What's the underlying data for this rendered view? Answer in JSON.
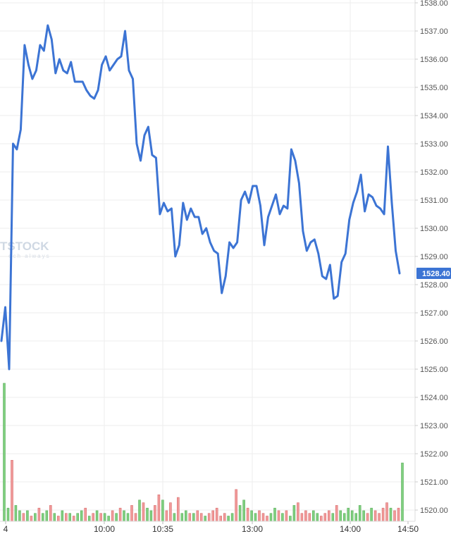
{
  "watermark": {
    "brand": "TSTOCK",
    "tagline": "ech  always"
  },
  "colors": {
    "price_line": "#3c74d4",
    "vol_up": "#7fcf7f",
    "vol_down": "#f19a9a",
    "grid": "#eeeeee",
    "last_badge": "#3c74d4"
  },
  "chart_data": {
    "type": "line",
    "title": "",
    "ylim": [
      1519.6,
      1538.1
    ],
    "y_ticks": [
      "1520.00",
      "1521.00",
      "1522.00",
      "1523.00",
      "1524.00",
      "1525.00",
      "1526.00",
      "1527.00",
      "1528.00",
      "1529.00",
      "1530.00",
      "1531.00",
      "1532.00",
      "1533.00",
      "1534.00",
      "1535.00",
      "1536.00",
      "1537.00",
      "1538.00"
    ],
    "x_ticks": [
      "4",
      "10:00",
      "10:35",
      "13:00",
      "14:00",
      "14:50"
    ],
    "last_price": "1528.40",
    "grid": true,
    "series": [
      {
        "values": [
          1526.0,
          1527.2,
          1525.0,
          1533.0,
          1532.8,
          1533.5,
          1536.5,
          1535.8,
          1535.3,
          1535.6,
          1536.5,
          1536.3,
          1537.2,
          1536.7,
          1535.5,
          1536.0,
          1535.6,
          1535.5,
          1535.9,
          1535.2,
          1535.2,
          1535.2,
          1534.9,
          1534.7,
          1534.6,
          1534.9,
          1535.8,
          1536.1,
          1535.6,
          1535.8,
          1536.0,
          1536.1,
          1537.0,
          1535.6,
          1535.3,
          1533.0,
          1532.4,
          1533.3,
          1533.6,
          1532.6,
          1532.5,
          1530.5,
          1530.9,
          1530.6,
          1530.7,
          1529.0,
          1529.4,
          1530.9,
          1530.3,
          1530.7,
          1530.4,
          1530.4,
          1529.8,
          1530.0,
          1529.5,
          1529.2,
          1529.1,
          1527.7,
          1528.3,
          1529.5,
          1529.3,
          1529.5,
          1531.0,
          1531.3,
          1530.9,
          1531.5,
          1531.5,
          1530.8,
          1529.4,
          1530.4,
          1530.8,
          1531.2,
          1530.5,
          1530.8,
          1530.7,
          1532.8,
          1532.4,
          1531.6,
          1529.9,
          1529.2,
          1529.5,
          1529.6,
          1529.1,
          1528.3,
          1528.2,
          1528.7,
          1527.5,
          1527.6,
          1528.8,
          1529.1,
          1530.3,
          1530.9,
          1531.3,
          1531.9,
          1530.6,
          1531.2,
          1531.1,
          1530.8,
          1530.7,
          1530.5,
          1532.9,
          1530.9,
          1529.2,
          1528.4
        ]
      }
    ],
    "volume": [
      5.2,
      0.5,
      2.3,
      0.6,
      0.4,
      0.3,
      0.4,
      0.2,
      0.3,
      0.5,
      0.3,
      0.4,
      0.6,
      0.3,
      0.2,
      0.4,
      0.3,
      0.3,
      0.2,
      0.3,
      0.4,
      0.5,
      0.2,
      0.3,
      0.4,
      0.3,
      0.3,
      0.2,
      0.4,
      0.3,
      0.5,
      0.4,
      0.3,
      0.6,
      0.3,
      0.8,
      0.7,
      0.5,
      0.4,
      0.6,
      1.0,
      0.8,
      0.4,
      0.7,
      0.3,
      0.9,
      0.3,
      0.4,
      0.3,
      0.3,
      0.4,
      0.3,
      0.2,
      0.3,
      0.4,
      0.5,
      0.2,
      0.3,
      0.2,
      0.3,
      1.2,
      0.6,
      0.8,
      0.5,
      0.4,
      0.3,
      0.4,
      0.3,
      0.2,
      0.3,
      0.5,
      0.4,
      0.3,
      0.4,
      0.2,
      0.6,
      0.7,
      0.3,
      0.4,
      0.3,
      0.4,
      0.3,
      0.2,
      0.3,
      0.4,
      0.3,
      0.6,
      0.4,
      0.3,
      0.5,
      0.4,
      0.3,
      0.6,
      0.4,
      0.3,
      0.5,
      0.4,
      0.3,
      0.5,
      0.7,
      0.5,
      0.4,
      0.5,
      2.2
    ],
    "volume_up": [
      true,
      true,
      false,
      true,
      true,
      false,
      true,
      false,
      true,
      false,
      true,
      true,
      false,
      true,
      false,
      true,
      false,
      true,
      false,
      true,
      true,
      false,
      true,
      false,
      true,
      false,
      true,
      true,
      false,
      true,
      false,
      true,
      true,
      false,
      false,
      true,
      false,
      true,
      true,
      false,
      false,
      true,
      false,
      false,
      true,
      false,
      true,
      true,
      false,
      true,
      false,
      false,
      true,
      false,
      false,
      false,
      false,
      false,
      true,
      true,
      false,
      true,
      true,
      false,
      true,
      true,
      false,
      false,
      false,
      true,
      true,
      false,
      true,
      false,
      true,
      true,
      false,
      false,
      false,
      false,
      true,
      true,
      false,
      false,
      false,
      true,
      false,
      true,
      true,
      true,
      true,
      true,
      true,
      true,
      false,
      true,
      false,
      false,
      false,
      false,
      true,
      false,
      false,
      true
    ]
  }
}
